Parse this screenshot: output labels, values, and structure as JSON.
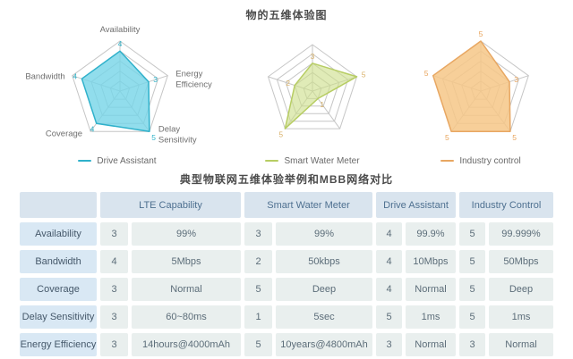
{
  "chart_section_title": "物的五维体验图",
  "chart_data": {
    "type": "radar",
    "layout": "three separate pentagon radars, legend below each",
    "axes": [
      "Availability",
      "Energy Efficiency",
      "Delay Sensitivity",
      "Coverage",
      "Bandwidth"
    ],
    "scale_min": 0,
    "scale_max": 5,
    "rings": 5,
    "grid_color": "#c6c6c6",
    "series": [
      {
        "name": "Drive Assistant",
        "values": [
          4,
          3,
          5,
          4,
          4
        ],
        "fill": "#76d5e7",
        "fill_opacity": 0.8,
        "stroke": "#2fb1cb",
        "label_color": "#2fb3c9",
        "show_axis_labels": true
      },
      {
        "name": "Smart Water Meter",
        "values": [
          3,
          5,
          1,
          5,
          2
        ],
        "fill": "#cddf8a",
        "fill_opacity": 0.62,
        "stroke": "#b7cd63",
        "label_color": "#d9b169",
        "show_axis_labels": false
      },
      {
        "name": "Industry control",
        "values": [
          5,
          3,
          5,
          5,
          5
        ],
        "fill": "#f6c787",
        "fill_opacity": 0.85,
        "stroke": "#e8a762",
        "label_color": "#e8a45c",
        "show_axis_labels": false
      }
    ],
    "axis_label_color": "#6f6f6f"
  },
  "table": {
    "title": "典型物联网五维体验举例和MBB网络对比",
    "columns": [
      "",
      "LTE Capability",
      "Smart Water Meter",
      "Drive Assistant",
      "Industry Control"
    ],
    "rows": [
      {
        "label": "Availability",
        "cells": [
          [
            "3",
            "99%"
          ],
          [
            "3",
            "99%"
          ],
          [
            "4",
            "99.9%"
          ],
          [
            "5",
            "99.999%"
          ]
        ]
      },
      {
        "label": "Bandwidth",
        "cells": [
          [
            "4",
            "5Mbps"
          ],
          [
            "2",
            "50kbps"
          ],
          [
            "4",
            "10Mbps"
          ],
          [
            "5",
            "50Mbps"
          ]
        ]
      },
      {
        "label": "Coverage",
        "cells": [
          [
            "3",
            "Normal"
          ],
          [
            "5",
            "Deep"
          ],
          [
            "4",
            "Normal"
          ],
          [
            "5",
            "Deep"
          ]
        ]
      },
      {
        "label": "Delay Sensitivity",
        "cells": [
          [
            "3",
            "60~80ms"
          ],
          [
            "1",
            "5sec"
          ],
          [
            "5",
            "1ms"
          ],
          [
            "5",
            "1ms"
          ]
        ]
      },
      {
        "label": "Energy Efficiency",
        "cells": [
          [
            "3",
            "14hours@4000mAh"
          ],
          [
            "5",
            "10years@4800mAh"
          ],
          [
            "3",
            "Normal"
          ],
          [
            "3",
            "Normal"
          ]
        ]
      }
    ],
    "colors": {
      "header_bg": "#d9e4ee",
      "header_text": "#4e7090",
      "label_bg": "#d9e8f4",
      "label_text": "#45586a",
      "cell_bg": "#e9efee",
      "cell_text": "#5c6d79"
    }
  }
}
